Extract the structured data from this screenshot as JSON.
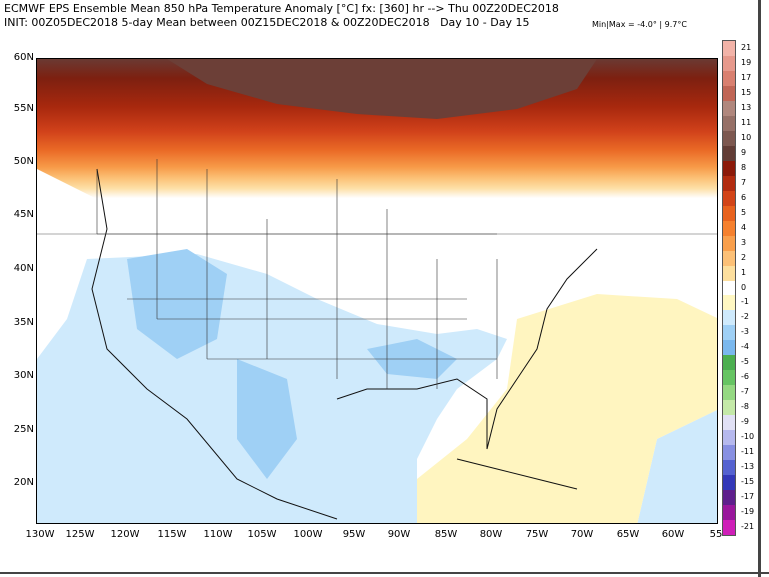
{
  "header": {
    "line1": "ECMWF EPS Ensemble Mean 850 hPa Temperature Anomaly [°C] fx: [360] hr --> Thu 00Z20DEC2018",
    "line2": "INIT: 00Z05DEC2018 5-day Mean between 00Z15DEC2018 & 00Z20DEC2018   Day 10 - Day 15",
    "minmax": "Min|Max = -4.0° | 9.7°C"
  },
  "map": {
    "lat_labels": [
      "60N",
      "55N",
      "50N",
      "45N",
      "40N",
      "35N",
      "30N",
      "25N",
      "20N"
    ],
    "lon_labels": [
      "130W",
      "125W",
      "120W",
      "115W",
      "110W",
      "105W",
      "100W",
      "95W",
      "90W",
      "85W",
      "80W",
      "75W",
      "70W",
      "65W",
      "60W",
      "55"
    ]
  },
  "colorbar": {
    "labels": [
      "21",
      "19",
      "17",
      "15",
      "13",
      "11",
      "10",
      "9",
      "8",
      "7",
      "6",
      "5",
      "4",
      "3",
      "2",
      "1",
      "0",
      "-1",
      "-2",
      "-3",
      "-4",
      "-5",
      "-6",
      "-7",
      "-8",
      "-9",
      "-10",
      "-11",
      "-13",
      "-15",
      "-17",
      "-19",
      "-21"
    ],
    "colors": [
      "#f2b3a8",
      "#e6998c",
      "#d98070",
      "#c06656",
      "#b0877d",
      "#967067",
      "#7d5850",
      "#623d36",
      "#8c1a0a",
      "#b22c10",
      "#d24418",
      "#e8621e",
      "#f5802e",
      "#f99f4c",
      "#fcc077",
      "#fddf9e",
      "#ffffff",
      "#fff7c2",
      "#cfeafc",
      "#9fd0f5",
      "#7ab8ee",
      "#4caf50",
      "#66c463",
      "#94d882",
      "#c4e9a8",
      "#e1e1f5",
      "#b6b9ee",
      "#8890e2",
      "#5562d0",
      "#3338b8",
      "#5e1f8c",
      "#99179c",
      "#cf1fb8"
    ]
  }
}
